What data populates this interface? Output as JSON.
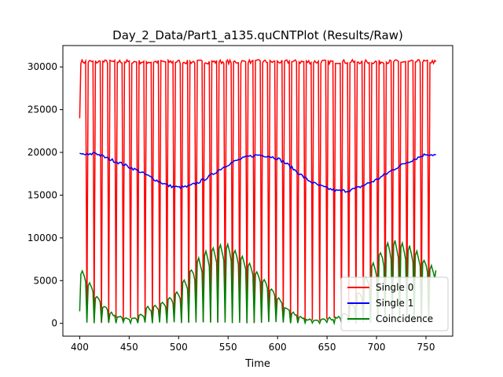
{
  "chart_data": {
    "type": "line",
    "title": "Day_2_Data/Part1_a135.quCNTPlot (Results/Raw)",
    "xlabel": "Time",
    "ylabel": "",
    "xlim": [
      383,
      777
    ],
    "ylim": [
      -1500,
      32500
    ],
    "x_ticks": [
      400,
      450,
      500,
      550,
      600,
      650,
      700,
      750
    ],
    "y_ticks": [
      0,
      5000,
      10000,
      15000,
      20000,
      25000,
      30000
    ],
    "x_tick_labels": [
      "400",
      "450",
      "500",
      "550",
      "600",
      "650",
      "700",
      "750"
    ],
    "y_tick_labels": [
      "0",
      "5000",
      "10000",
      "15000",
      "20000",
      "25000",
      "30000"
    ],
    "legend_position": "lower-right",
    "grid": false,
    "series": [
      {
        "name": "Single 0",
        "color": "#ff0000",
        "start_value": 24000,
        "high_value": 30600,
        "low_value": 0,
        "period": 7.35,
        "high_fraction": 0.66,
        "x_start": 400,
        "x_end": 760
      },
      {
        "name": "Single 1",
        "color": "#0000ff",
        "x": [
          400,
          410,
          415,
          420,
          430,
          440,
          450,
          460,
          470,
          480,
          490,
          500,
          510,
          520,
          530,
          540,
          550,
          560,
          570,
          580,
          590,
          600,
          610,
          620,
          630,
          640,
          650,
          660,
          670,
          680,
          690,
          700,
          710,
          720,
          730,
          740,
          750,
          760
        ],
        "values": [
          19800,
          19700,
          20000,
          19700,
          19200,
          18800,
          18300,
          17800,
          17200,
          16600,
          16100,
          15900,
          16000,
          16500,
          17100,
          17900,
          18600,
          19100,
          19500,
          19700,
          19600,
          19300,
          18600,
          17700,
          16800,
          16200,
          15800,
          15500,
          15500,
          15800,
          16300,
          16800,
          17500,
          18200,
          18800,
          19300,
          19800,
          19700
        ]
      },
      {
        "name": "Coincidence",
        "color": "#008000",
        "x": [
          400,
          410,
          420,
          430,
          440,
          450,
          460,
          470,
          480,
          490,
          500,
          510,
          520,
          530,
          540,
          550,
          560,
          570,
          580,
          590,
          600,
          610,
          620,
          630,
          640,
          650,
          660,
          670,
          680,
          690,
          700,
          710,
          720,
          730,
          740,
          750,
          760
        ],
        "peak_values": [
          6700,
          4800,
          2700,
          1300,
          800,
          500,
          700,
          1900,
          2100,
          2800,
          3700,
          5800,
          7400,
          8500,
          9200,
          9200,
          8400,
          7400,
          6000,
          4700,
          3200,
          1800,
          900,
          500,
          300,
          500,
          700,
          1300,
          3000,
          5500,
          7500,
          9300,
          9600,
          9200,
          8600,
          7300,
          6200
        ],
        "start_value": 1400
      }
    ]
  }
}
